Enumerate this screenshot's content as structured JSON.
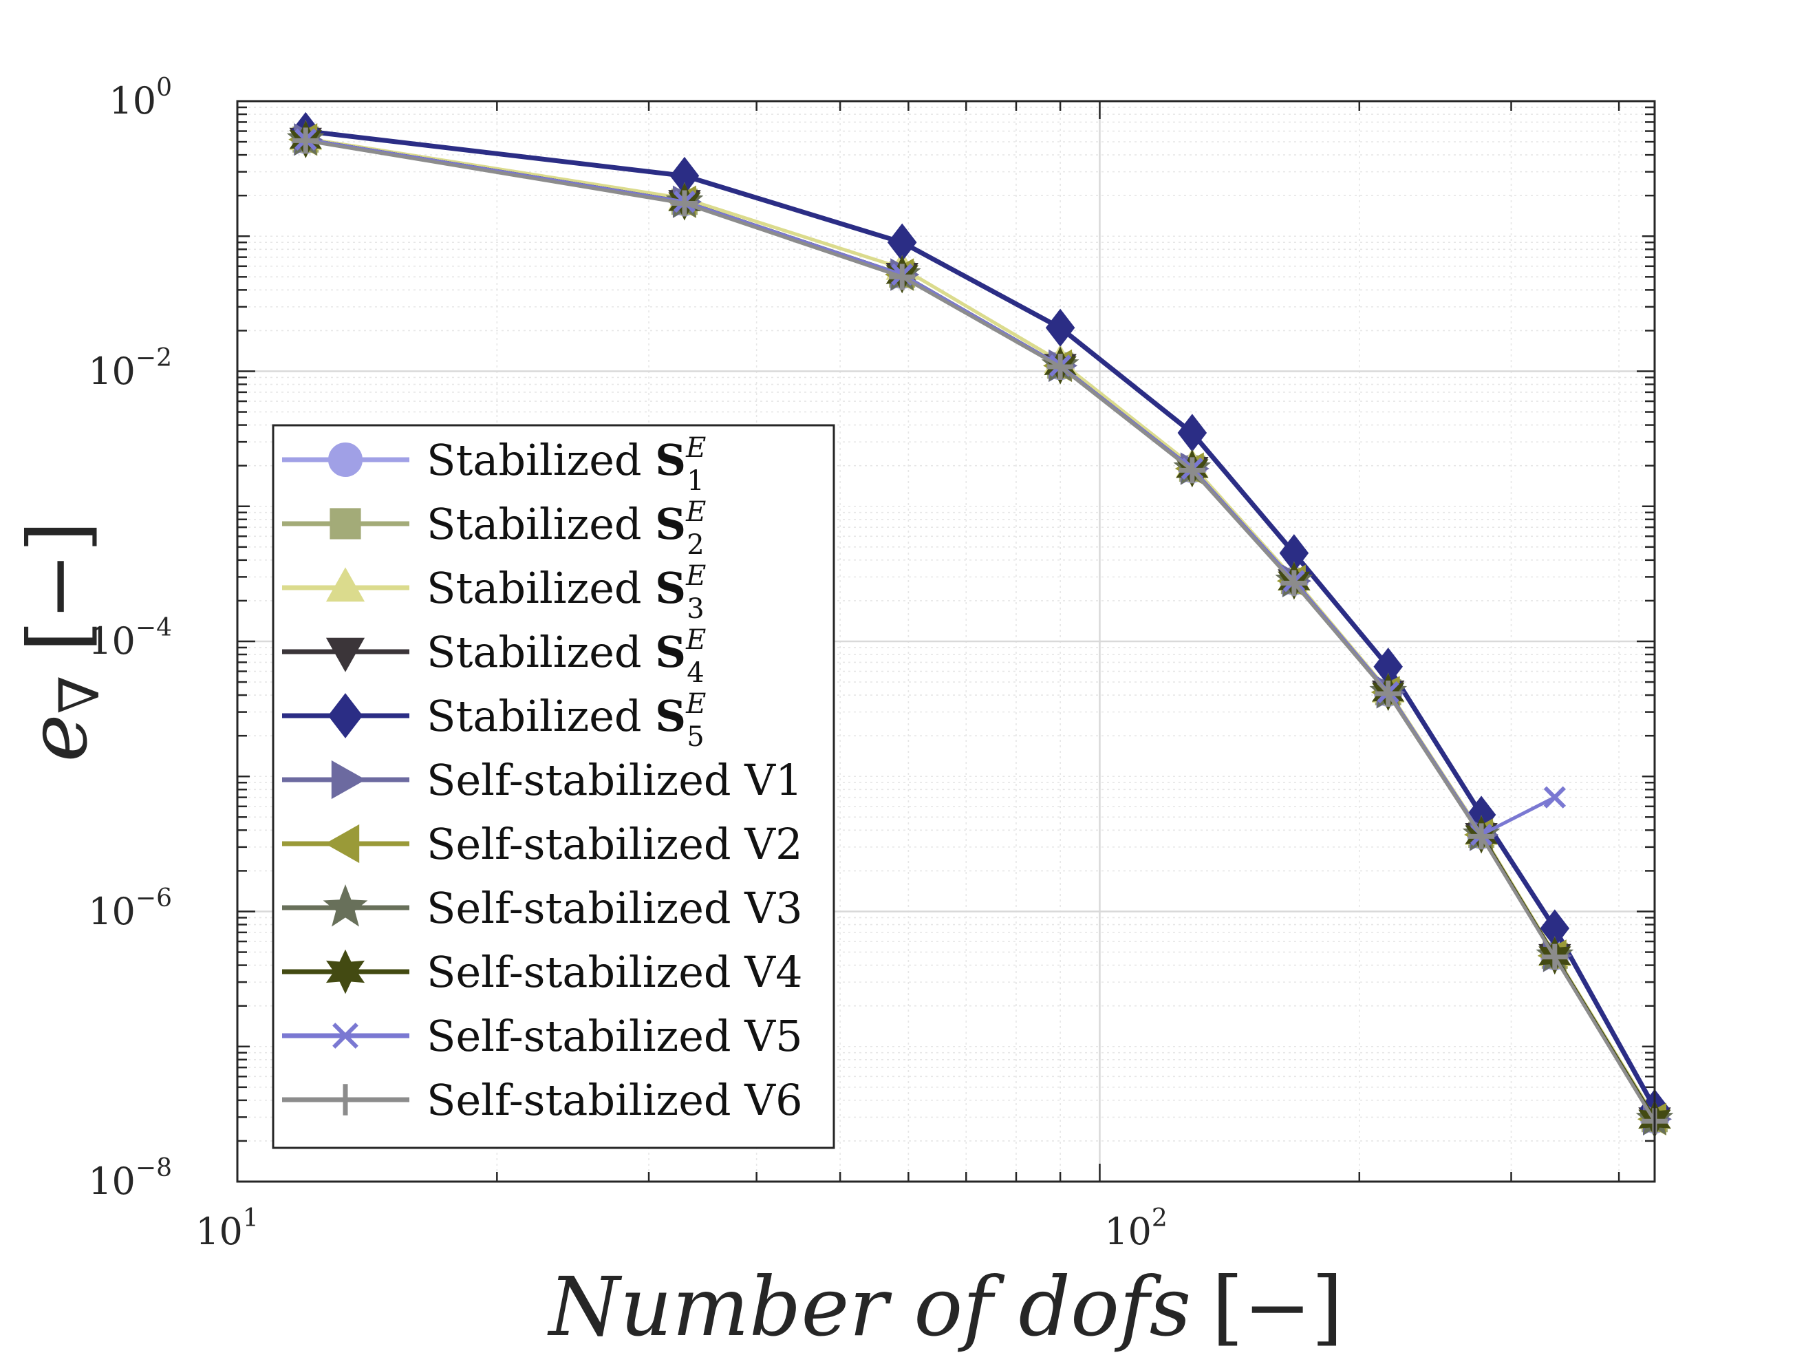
{
  "chart_data": {
    "type": "line",
    "xscale": "log",
    "yscale": "log",
    "xlim": [
      10,
      440
    ],
    "ylim": [
      1e-08,
      1
    ],
    "grid": true,
    "legend_position": "bottom-left",
    "xlabel": {
      "text": "Number of dofs",
      "unit": "[−]"
    },
    "ylabel": {
      "symbol": "e",
      "subscript": "∇",
      "unit": "[−]"
    },
    "xticks": [
      {
        "base": "10",
        "exp": "1",
        "value": 10
      },
      {
        "base": "10",
        "exp": "2",
        "value": 100
      }
    ],
    "yticks": [
      {
        "base": "10",
        "exp": "0",
        "value": 1
      },
      {
        "base": "10",
        "exp": "−2",
        "value": 0.01
      },
      {
        "base": "10",
        "exp": "−4",
        "value": 0.0001
      },
      {
        "base": "10",
        "exp": "−6",
        "value": 1e-06
      },
      {
        "base": "10",
        "exp": "−8",
        "value": 1e-08
      }
    ],
    "x": [
      12,
      33,
      59,
      90,
      128,
      168,
      216,
      277,
      337,
      440
    ],
    "series": [
      {
        "name": "Stabilized S1E",
        "label_prefix": "Stabilized ",
        "label_bold": "S",
        "label_sub": "1",
        "label_sup": "E",
        "color": "#a0a0e6",
        "marker": "circle",
        "values": [
          0.52,
          0.18,
          0.052,
          0.011,
          0.0019,
          0.00028,
          4.2e-05,
          3.7e-06,
          4.7e-07,
          2.9e-08
        ]
      },
      {
        "name": "Stabilized S2E",
        "label_prefix": "Stabilized ",
        "label_bold": "S",
        "label_sub": "2",
        "label_sup": "E",
        "color": "#a3ab78",
        "marker": "square",
        "values": [
          0.52,
          0.18,
          0.052,
          0.011,
          0.0019,
          0.00028,
          4.2e-05,
          3.7e-06,
          4.7e-07,
          2.9e-08
        ]
      },
      {
        "name": "Stabilized S3E",
        "label_prefix": "Stabilized ",
        "label_bold": "S",
        "label_sub": "3",
        "label_sup": "E",
        "color": "#dbdb8d",
        "marker": "triangle-up",
        "values": [
          0.53,
          0.19,
          0.058,
          0.0118,
          0.002,
          0.00029,
          4.3e-05,
          3.8e-06,
          4.8e-07,
          3e-08
        ]
      },
      {
        "name": "Stabilized S4E",
        "label_prefix": "Stabilized ",
        "label_bold": "S",
        "label_sub": "4",
        "label_sup": "E",
        "color": "#3b3539",
        "marker": "triangle-down",
        "values": [
          0.52,
          0.18,
          0.052,
          0.011,
          0.0019,
          0.00028,
          4.2e-05,
          3.7e-06,
          4.7e-07,
          2.9e-08
        ]
      },
      {
        "name": "Stabilized S5E",
        "label_prefix": "Stabilized ",
        "label_bold": "S",
        "label_sub": "5",
        "label_sup": "E",
        "color": "#2b2d85",
        "marker": "diamond",
        "values": [
          0.6,
          0.28,
          0.09,
          0.021,
          0.0035,
          0.00045,
          6.5e-05,
          5.2e-06,
          7.5e-07,
          3.5e-08
        ]
      },
      {
        "name": "Self-stabilized V1",
        "label_prefix": "Self-stabilized V1",
        "color": "#6c6aa0",
        "marker": "triangle-right",
        "values": [
          0.52,
          0.18,
          0.052,
          0.011,
          0.0019,
          0.00028,
          4.2e-05,
          3.7e-06,
          4.7e-07,
          2.9e-08
        ]
      },
      {
        "name": "Self-stabilized V2",
        "label_prefix": "Self-stabilized V2",
        "color": "#9a9a38",
        "marker": "triangle-left",
        "values": [
          0.52,
          0.18,
          0.052,
          0.011,
          0.0019,
          0.00028,
          4.2e-05,
          3.7e-06,
          4.7e-07,
          2.9e-08
        ]
      },
      {
        "name": "Self-stabilized V3",
        "label_prefix": "Self-stabilized V3",
        "color": "#68705a",
        "marker": "star5",
        "values": [
          0.52,
          0.18,
          0.052,
          0.011,
          0.0019,
          0.00028,
          4.2e-05,
          3.7e-06,
          4.7e-07,
          2.9e-08
        ]
      },
      {
        "name": "Self-stabilized V4",
        "label_prefix": "Self-stabilized V4",
        "color": "#434a12",
        "marker": "star6",
        "values": [
          0.52,
          0.18,
          0.052,
          0.011,
          0.0019,
          0.00028,
          4.2e-05,
          3.7e-06,
          4.7e-07,
          2.9e-08
        ]
      },
      {
        "name": "Self-stabilized V5",
        "label_prefix": "Self-stabilized V5",
        "color": "#7a78d2",
        "marker": "x",
        "values": [
          0.52,
          0.18,
          0.052,
          0.011,
          0.0019,
          0.00028,
          4.2e-05,
          3.7e-06,
          7e-06,
          null
        ]
      },
      {
        "name": "Self-stabilized V6",
        "label_prefix": "Self-stabilized V6",
        "color": "#8c8c8c",
        "marker": "plus",
        "values": [
          0.51,
          0.175,
          0.05,
          0.0108,
          0.00185,
          0.00027,
          4.1e-05,
          3.6e-06,
          4.6e-07,
          2.8e-08
        ]
      }
    ]
  }
}
